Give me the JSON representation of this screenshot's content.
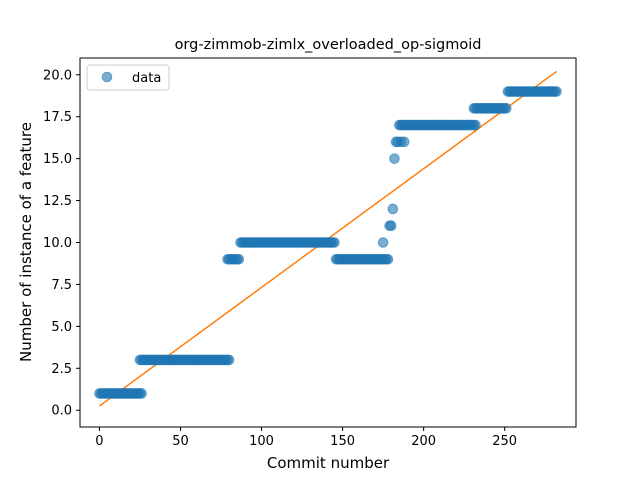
{
  "chart_data": {
    "type": "scatter",
    "title": "org-zimmob-zimlx_overloaded_op-sigmoid",
    "xlabel": "Commit number",
    "ylabel": "Number of instance of a feature",
    "xlim": [
      -12,
      294
    ],
    "ylim": [
      -1.0,
      21.0
    ],
    "xticks": [
      0,
      50,
      100,
      150,
      200,
      250
    ],
    "yticks": [
      0.0,
      2.5,
      5.0,
      7.5,
      10.0,
      12.5,
      15.0,
      17.5,
      20.0
    ],
    "xtick_labels": [
      "0",
      "50",
      "100",
      "150",
      "200",
      "250"
    ],
    "ytick_labels": [
      "0.0",
      "2.5",
      "5.0",
      "7.5",
      "10.0",
      "12.5",
      "15.0",
      "17.5",
      "20.0"
    ],
    "legend": {
      "location": "upper left",
      "entries": [
        "data"
      ]
    },
    "grid": false,
    "colors": {
      "data": "#1f77b4",
      "fit": "#ff7f0e"
    },
    "series": [
      {
        "name": "data",
        "kind": "scatter",
        "segments": [
          {
            "x_start": 0,
            "x_end": 26,
            "y": 1
          },
          {
            "x_start": 25,
            "x_end": 80,
            "y": 3
          },
          {
            "x_start": 79,
            "x_end": 86,
            "y": 9
          },
          {
            "x_start": 87,
            "x_end": 145,
            "y": 10
          },
          {
            "x_start": 146,
            "x_end": 178,
            "y": 9
          },
          {
            "x_start": 185,
            "x_end": 232,
            "y": 17
          },
          {
            "x_start": 231,
            "x_end": 251,
            "y": 18
          },
          {
            "x_start": 252,
            "x_end": 282,
            "y": 19
          }
        ],
        "points": [
          {
            "x": 175,
            "y": 10
          },
          {
            "x": 179,
            "y": 11
          },
          {
            "x": 180,
            "y": 11
          },
          {
            "x": 181,
            "y": 12
          },
          {
            "x": 182,
            "y": 15
          },
          {
            "x": 183,
            "y": 16
          },
          {
            "x": 184,
            "y": 16
          },
          {
            "x": 186,
            "y": 16
          },
          {
            "x": 188,
            "y": 16
          }
        ]
      },
      {
        "kind": "line",
        "x": [
          0,
          282
        ],
        "y": [
          0.25,
          20.2
        ]
      }
    ]
  }
}
